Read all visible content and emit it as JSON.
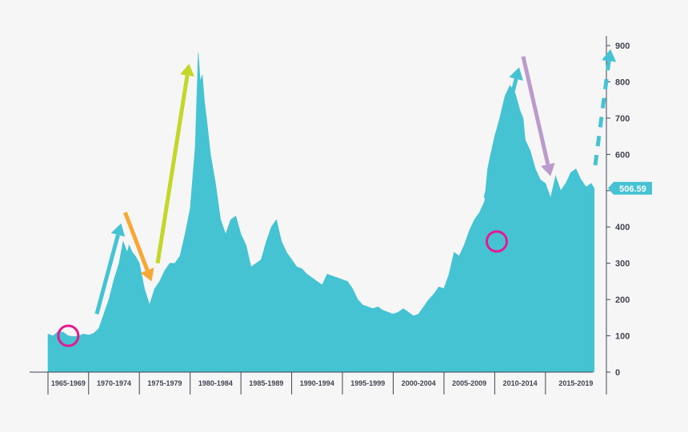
{
  "chart_data": {
    "type": "area",
    "title": "",
    "xlabel": "",
    "ylabel": "",
    "ylim": [
      0,
      900
    ],
    "xlim": [
      1965,
      2020
    ],
    "yticks": [
      0,
      100,
      200,
      300,
      400,
      500,
      600,
      700,
      800,
      900
    ],
    "grid": false,
    "x_categories": [
      "1965-1969",
      "1970-1974",
      "1975-1979",
      "1980-1984",
      "1985-1989",
      "1990-1994",
      "1995-1999",
      "2000-2004",
      "2005-2009",
      "2010-2014",
      "2015-2019"
    ],
    "category_bounds": [
      1965,
      1969,
      1974,
      1979,
      1984,
      1989,
      1994,
      1999,
      2004,
      2009,
      2014,
      2020
    ],
    "series": [
      {
        "color": "#45c3d3",
        "x": [
          1965.0,
          1965.5,
          1966.0,
          1966.5,
          1967.0,
          1967.5,
          1968.0,
          1968.5,
          1969.0,
          1969.5,
          1970.0,
          1970.5,
          1971.0,
          1971.5,
          1972.0,
          1972.4,
          1972.8,
          1973.0,
          1973.3,
          1973.6,
          1974.0,
          1974.5,
          1975.0,
          1975.5,
          1976.0,
          1976.5,
          1977.0,
          1977.5,
          1978.0,
          1978.5,
          1979.0,
          1979.5,
          1979.8,
          1980.0,
          1980.2,
          1980.4,
          1980.7,
          1981.0,
          1981.5,
          1982.0,
          1982.5,
          1983.0,
          1983.5,
          1984.0,
          1984.5,
          1985.0,
          1985.5,
          1986.0,
          1986.5,
          1987.0,
          1987.5,
          1988.0,
          1988.5,
          1989.0,
          1989.5,
          1990.0,
          1990.5,
          1991.0,
          1991.5,
          1992.0,
          1992.5,
          1993.0,
          1993.5,
          1994.0,
          1994.5,
          1995.0,
          1995.5,
          1996.0,
          1996.5,
          1997.0,
          1997.5,
          1998.0,
          1998.5,
          1999.0,
          1999.5,
          2000.0,
          2000.5,
          2001.0,
          2001.5,
          2002.0,
          2002.5,
          2003.0,
          2003.5,
          2004.0,
          2004.5,
          2005.0,
          2005.5,
          2006.0,
          2006.5,
          2007.0,
          2007.5,
          2008.0,
          2008.3,
          2008.6,
          2009.0,
          2009.5,
          2010.0,
          2010.5,
          2011.0,
          2011.5,
          2011.8,
          2012.0,
          2012.5,
          2013.0,
          2013.5,
          2014.0,
          2014.5,
          2015.0,
          2015.5,
          2016.0,
          2016.5,
          2017.0,
          2017.5,
          2018.0,
          2018.5,
          2018.8
        ],
        "y": [
          105,
          100,
          112,
          110,
          100,
          98,
          100,
          105,
          102,
          107,
          120,
          160,
          200,
          255,
          300,
          360,
          330,
          350,
          330,
          320,
          300,
          230,
          185,
          230,
          250,
          280,
          300,
          300,
          320,
          380,
          450,
          620,
          880,
          800,
          820,
          750,
          680,
          600,
          520,
          420,
          380,
          420,
          430,
          380,
          350,
          290,
          300,
          310,
          360,
          400,
          420,
          360,
          330,
          310,
          290,
          285,
          270,
          260,
          250,
          240,
          270,
          265,
          260,
          255,
          250,
          230,
          200,
          185,
          180,
          175,
          180,
          170,
          165,
          160,
          165,
          175,
          165,
          155,
          160,
          180,
          200,
          215,
          235,
          230,
          270,
          330,
          320,
          350,
          390,
          420,
          440,
          470,
          560,
          600,
          650,
          700,
          760,
          790,
          770,
          720,
          700,
          640,
          610,
          560,
          530,
          520,
          480,
          540,
          500,
          520,
          550,
          560,
          530,
          510,
          520,
          506.59
        ]
      }
    ],
    "annotations": {
      "last_value": "506.59",
      "circles": [
        {
          "x": 1967.0,
          "y": 100
        },
        {
          "x": 2009.2,
          "y": 360
        }
      ],
      "arrows": [
        {
          "color": "#45c3d3",
          "x1": 1969.8,
          "y1": 160,
          "x2": 1972.2,
          "y2": 410,
          "style": "solid"
        },
        {
          "color": "#f7a736",
          "x1": 1972.6,
          "y1": 440,
          "x2": 1975.2,
          "y2": 250,
          "style": "solid"
        },
        {
          "color": "#c3d62a",
          "x1": 1975.8,
          "y1": 300,
          "x2": 1978.9,
          "y2": 850,
          "style": "solid"
        },
        {
          "color": "#45c3d3",
          "x1": 2008.1,
          "y1": 480,
          "x2": 2011.4,
          "y2": 840,
          "style": "solid"
        },
        {
          "color": "#bb9bcc",
          "x1": 2011.8,
          "y1": 870,
          "x2": 2014.5,
          "y2": 540,
          "style": "solid"
        },
        {
          "color": "#45c3d3",
          "x1": 2018.9,
          "y1": 570,
          "x2": 2020.4,
          "y2": 890,
          "style": "dashed"
        }
      ]
    }
  }
}
